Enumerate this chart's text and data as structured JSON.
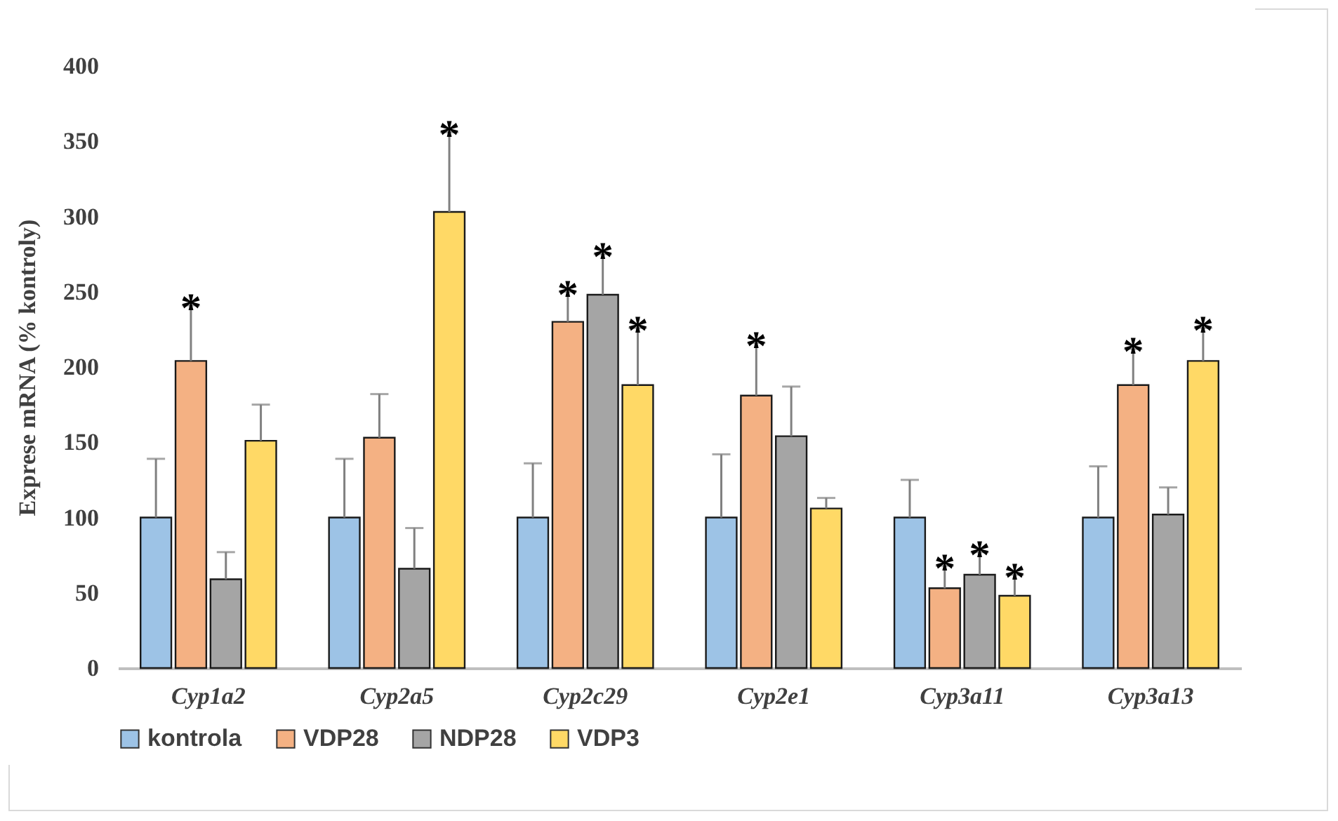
{
  "chart_data": {
    "type": "bar",
    "ylabel": "Exprese mRNA (% kontroly)",
    "categories": [
      "Cyp1a2",
      "Cyp2a5",
      "Cyp2c29",
      "Cyp2e1",
      "Cyp3a11",
      "Cyp3a13"
    ],
    "series": [
      {
        "name": "kontrola",
        "color": "#9dc3e6",
        "values": [
          100,
          100,
          100,
          100,
          100,
          100
        ],
        "errors": [
          [
            100,
            139
          ],
          [
            100,
            139
          ],
          [
            100,
            136
          ],
          [
            100,
            142
          ],
          [
            100,
            125
          ],
          [
            100,
            134
          ]
        ],
        "value_labels": [
          null,
          null,
          null,
          null,
          null,
          null
        ]
      },
      {
        "name": "VDP28",
        "color": "#f4b183",
        "values": [
          204,
          153,
          230,
          181,
          53,
          188
        ],
        "errors": [
          [
            204,
            241
          ],
          [
            153,
            182
          ],
          [
            230,
            250
          ],
          [
            181,
            216
          ],
          [
            53,
            68
          ],
          [
            188,
            212
          ]
        ],
        "value_labels": [
          "*",
          null,
          "*",
          "*",
          "*",
          "*"
        ]
      },
      {
        "name": "NDP28",
        "color": "#a5a5a5",
        "values": [
          59,
          66,
          248,
          154,
          62,
          102
        ],
        "errors": [
          [
            59,
            77
          ],
          [
            66,
            93
          ],
          [
            248,
            275
          ],
          [
            154,
            187
          ],
          [
            62,
            77
          ],
          [
            102,
            120
          ]
        ],
        "value_labels": [
          null,
          null,
          "*",
          null,
          "*",
          null
        ]
      },
      {
        "name": "VDP3",
        "color": "#ffd966",
        "values": [
          151,
          303,
          188,
          106,
          48,
          204
        ],
        "errors": [
          [
            151,
            175
          ],
          [
            303,
            356
          ],
          [
            188,
            226
          ],
          [
            106,
            113
          ],
          [
            48,
            62
          ],
          [
            204,
            226
          ]
        ],
        "value_labels": [
          null,
          "*",
          "*",
          null,
          "*",
          "*"
        ]
      }
    ],
    "ylim": [
      0,
      400
    ],
    "yticks": [
      0,
      50,
      100,
      150,
      200,
      250,
      300,
      350,
      400
    ],
    "grid": false,
    "legend": "bottom"
  }
}
